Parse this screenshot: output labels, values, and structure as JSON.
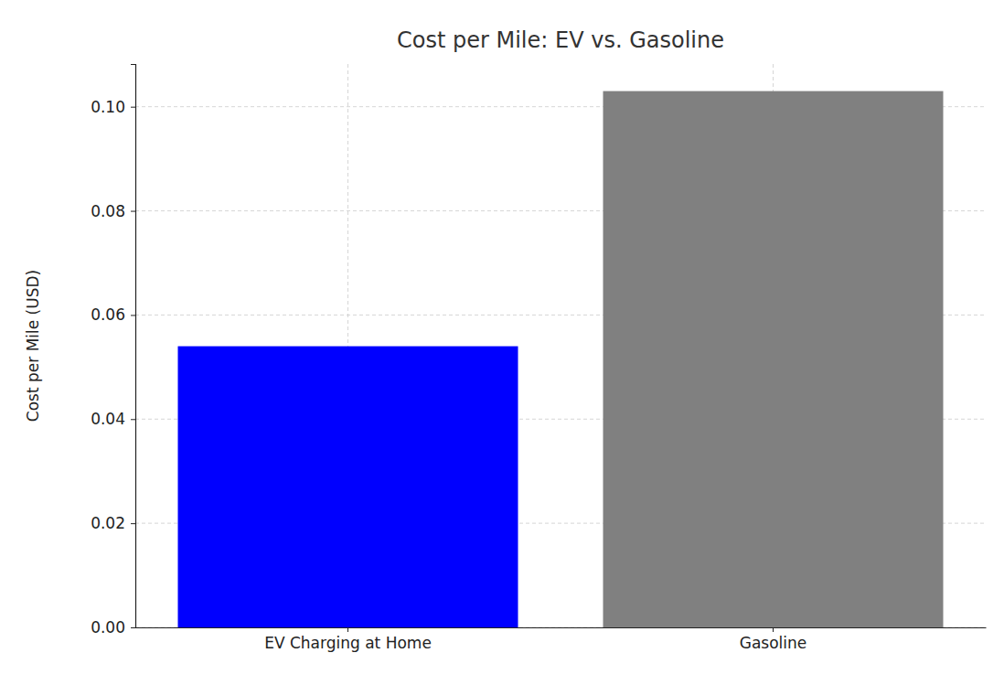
{
  "chart_data": {
    "type": "bar",
    "title": "Cost per Mile: EV vs. Gasoline",
    "y_label": "Cost per Mile (USD)",
    "categories": [
      "EV Charging at Home",
      "Gasoline"
    ],
    "values": [
      0.054,
      0.103
    ],
    "colors": [
      "#0000ff",
      "#808080"
    ],
    "ylim": [
      0,
      0.1082
    ],
    "yticks": [
      {
        "value": 0,
        "label": "0.00"
      },
      {
        "value": 0.02,
        "label": "0.02"
      },
      {
        "value": 0.04,
        "label": "0.04"
      },
      {
        "value": 0.06,
        "label": "0.06"
      },
      {
        "value": 0.08,
        "label": "0.08"
      },
      {
        "value": 0.1,
        "label": "0.10"
      }
    ],
    "grid": true
  }
}
